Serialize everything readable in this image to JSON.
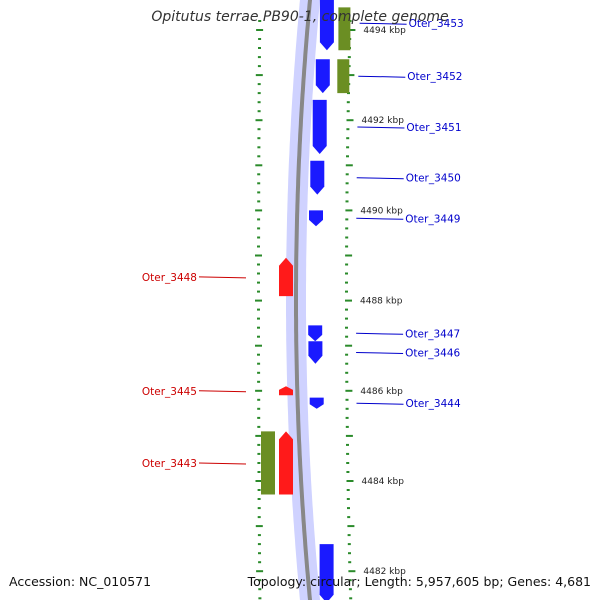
{
  "title": "Opitutus terrae PB90-1, complete genome",
  "footer": {
    "accession": "Accession: NC_010571",
    "summary": "Topology: circular; Length: 5,957,605 bp; Genes: 4,681"
  },
  "colors": {
    "forward_cds": "#1a1aff",
    "reverse_cds": "#ff1a1a",
    "rna_feature": "#6b8e23",
    "backbone": "#888888",
    "tick": "#2a8a2a",
    "forward_label": "#0000cc",
    "reverse_label": "#cc0000"
  },
  "scale_labels": [
    {
      "kbp": 4494,
      "text": "4494 kbp"
    },
    {
      "kbp": 4492,
      "text": "4492 kbp"
    },
    {
      "kbp": 4490,
      "text": "4490 kbp"
    },
    {
      "kbp": 4488,
      "text": "4488 kbp"
    },
    {
      "kbp": 4486,
      "text": "4486 kbp"
    },
    {
      "kbp": 4484,
      "text": "4484 kbp"
    },
    {
      "kbp": 4482,
      "text": "4482 kbp"
    }
  ],
  "features": [
    {
      "name": "Oter_3453",
      "strand": "+",
      "type": "CDS",
      "start_kbp": 4493.55,
      "end_kbp": 4494.75
    },
    {
      "name": "",
      "strand": "+",
      "type": "rRNA",
      "start_kbp": 4493.55,
      "end_kbp": 4494.5
    },
    {
      "name": "Oter_3452",
      "strand": "+",
      "type": "CDS",
      "start_kbp": 4492.6,
      "end_kbp": 4493.35
    },
    {
      "name": "",
      "strand": "+",
      "type": "rRNA",
      "start_kbp": 4492.6,
      "end_kbp": 4493.35
    },
    {
      "name": "Oter_3451",
      "strand": "+",
      "type": "CDS",
      "start_kbp": 4491.25,
      "end_kbp": 4492.45
    },
    {
      "name": "Oter_3450",
      "strand": "+",
      "type": "CDS",
      "start_kbp": 4490.35,
      "end_kbp": 4491.1
    },
    {
      "name": "Oter_3449",
      "strand": "+",
      "type": "CDS",
      "start_kbp": 4489.65,
      "end_kbp": 4490.0
    },
    {
      "name": "Oter_3448",
      "strand": "-",
      "type": "CDS",
      "start_kbp": 4488.1,
      "end_kbp": 4488.95
    },
    {
      "name": "Oter_3447",
      "strand": "+",
      "type": "CDS",
      "start_kbp": 4487.1,
      "end_kbp": 4487.45
    },
    {
      "name": "Oter_3446",
      "strand": "+",
      "type": "CDS",
      "start_kbp": 4486.6,
      "end_kbp": 4487.1
    },
    {
      "name": "Oter_3445",
      "strand": "-",
      "type": "CDS",
      "start_kbp": 4485.9,
      "end_kbp": 4486.1
    },
    {
      "name": "Oter_3444",
      "strand": "+",
      "type": "CDS",
      "start_kbp": 4485.6,
      "end_kbp": 4485.85
    },
    {
      "name": "Oter_3443",
      "strand": "-",
      "type": "CDS",
      "start_kbp": 4483.7,
      "end_kbp": 4485.1
    },
    {
      "name": "",
      "strand": "-",
      "type": "rRNA",
      "start_kbp": 4483.7,
      "end_kbp": 4485.1
    },
    {
      "name": "",
      "strand": "+",
      "type": "CDS",
      "start_kbp": 4481.3,
      "end_kbp": 4482.6
    }
  ]
}
